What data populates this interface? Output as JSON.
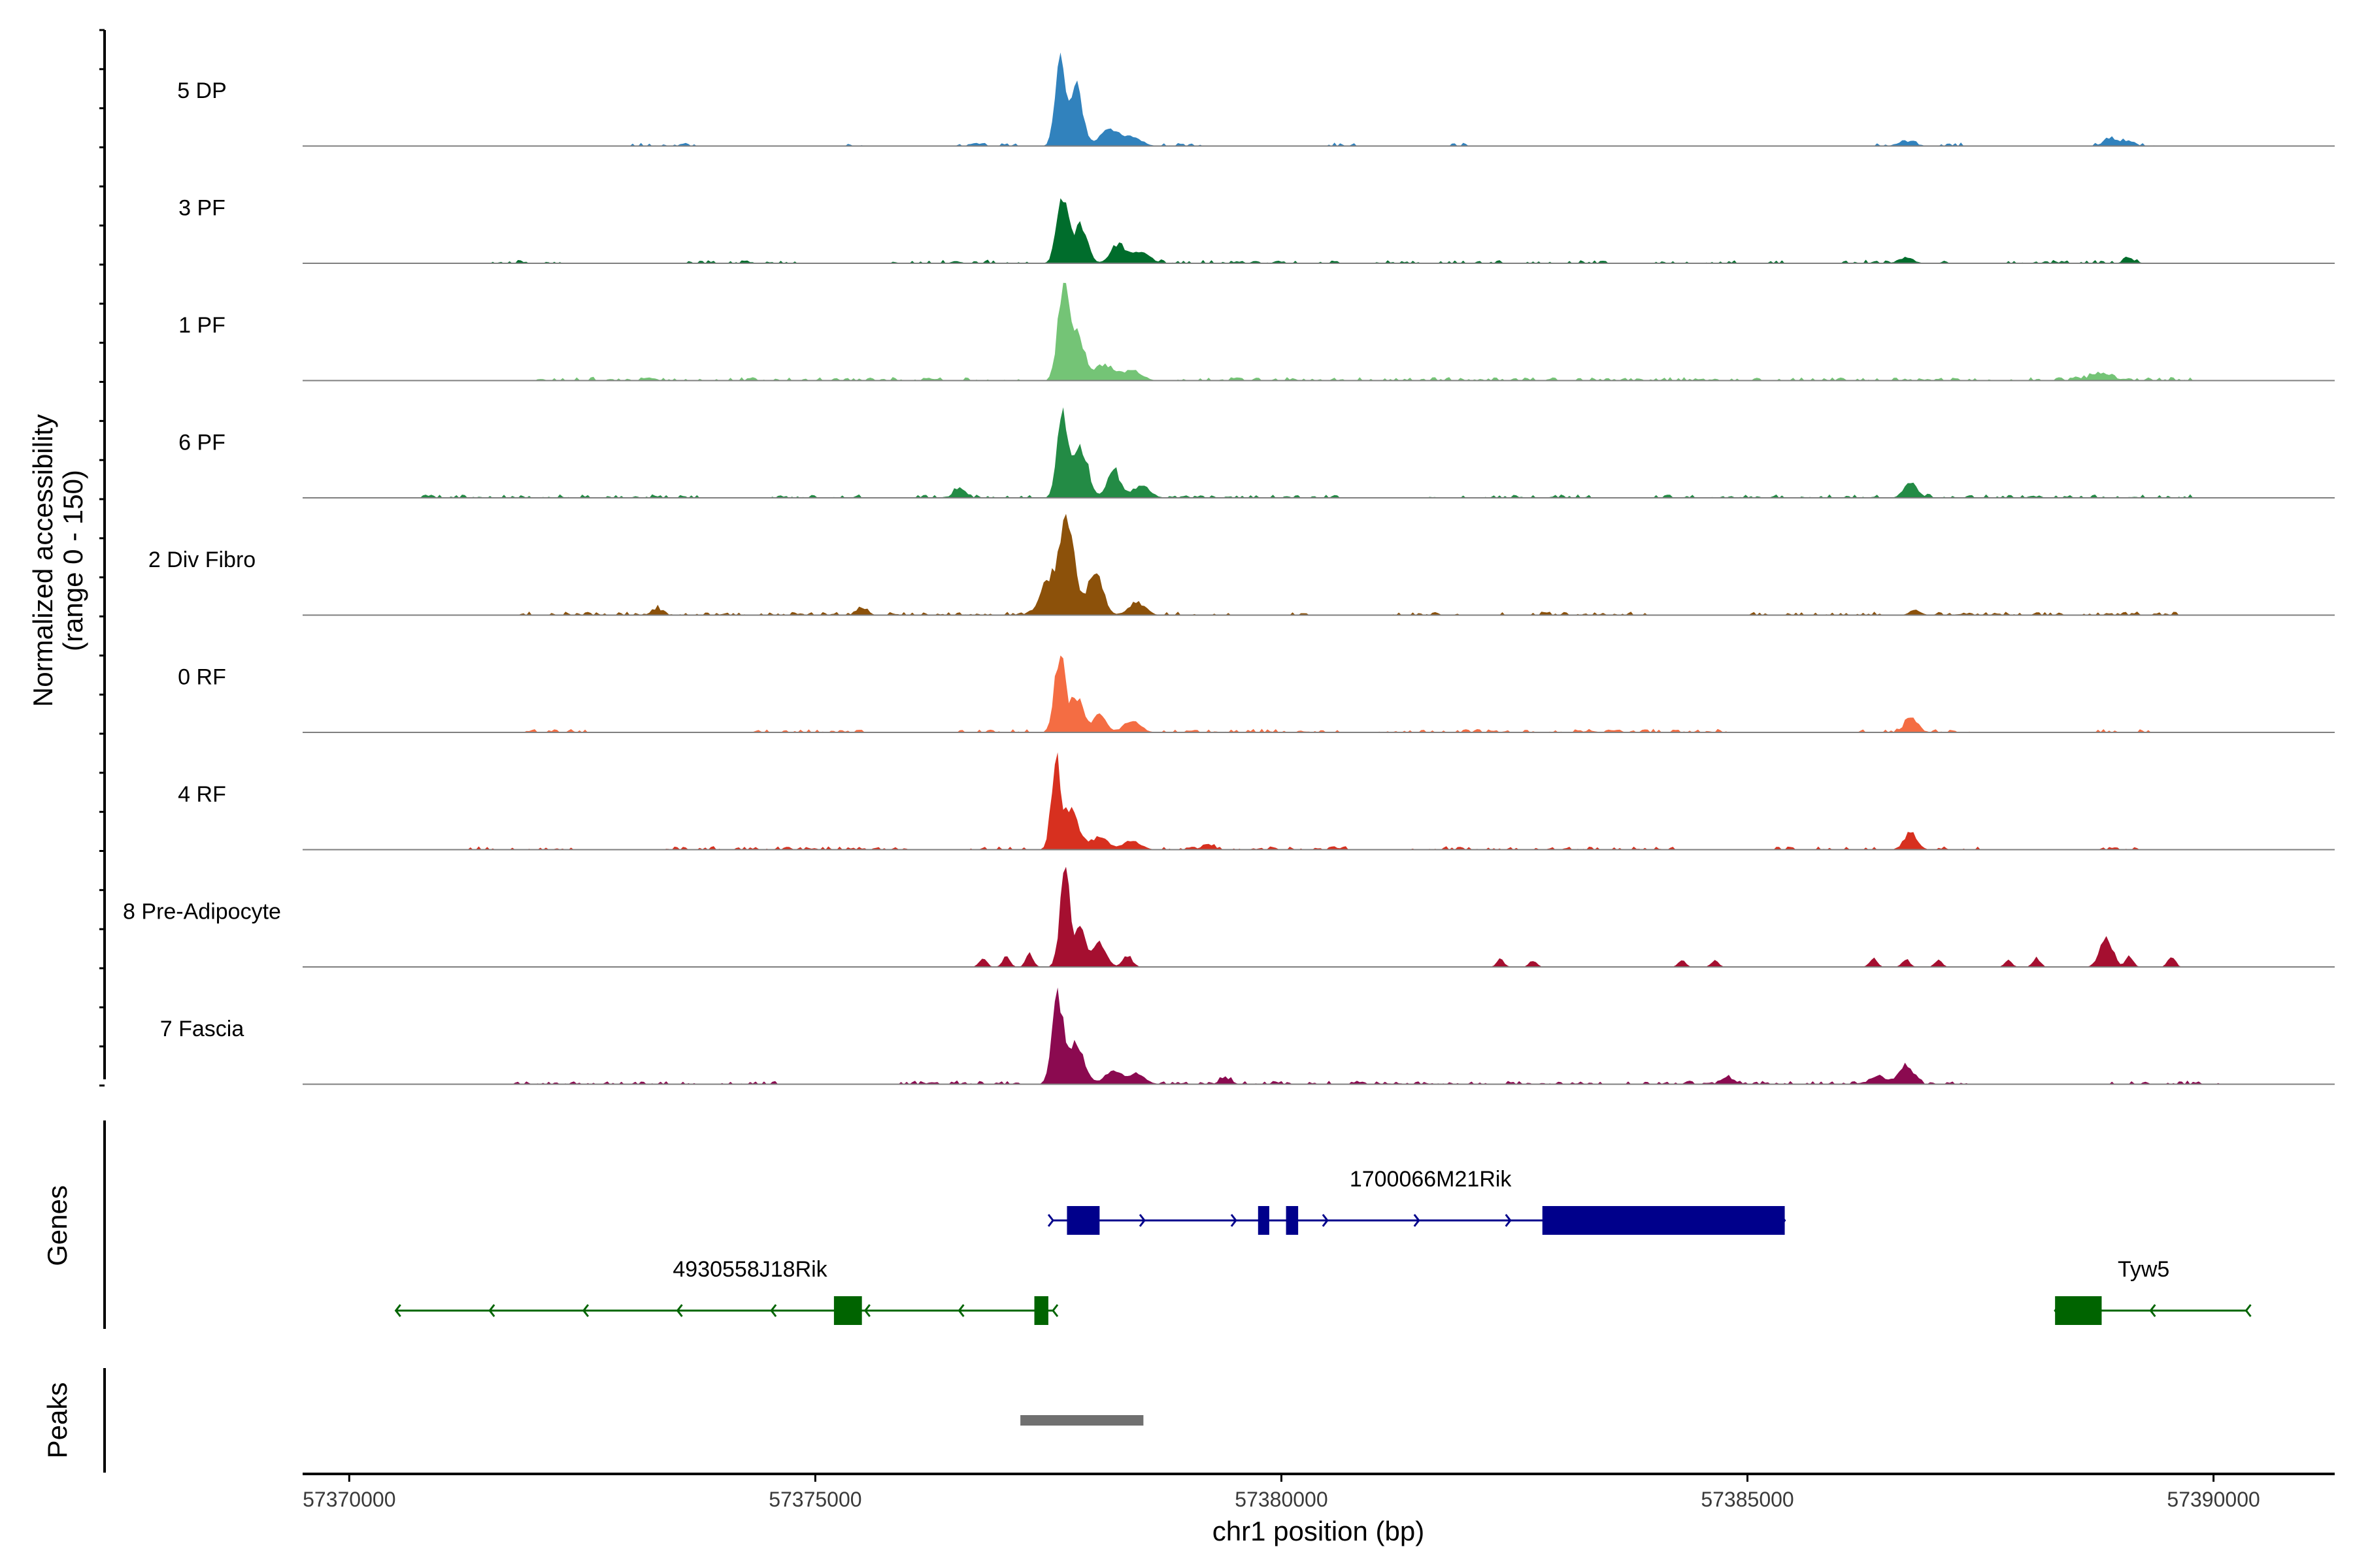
{
  "chart_data": {
    "type": "area",
    "title": "",
    "ylabel_lines": [
      "Normalized accessibility",
      "(range 0 - 150)"
    ],
    "xlabel": "chr1 position (bp)",
    "xlim": [
      57369500,
      57391300
    ],
    "xticks": [
      57370000,
      57375000,
      57380000,
      57385000,
      57390000
    ],
    "xtick_labels": [
      "57370000",
      "57375000",
      "57380000",
      "57385000",
      "57390000"
    ],
    "ylim": [
      0,
      150
    ],
    "tracks": [
      {
        "name": "5 DP",
        "color": "#3182bd",
        "peaks": [
          [
            57377620,
            140,
            50
          ],
          [
            57377800,
            90,
            70
          ],
          [
            57378150,
            28,
            90
          ],
          [
            57378400,
            14,
            100
          ],
          [
            57386700,
            7,
            90
          ],
          [
            57388900,
            10,
            80
          ],
          [
            57389100,
            8,
            60
          ]
        ],
        "noise": [
          [
            57373000,
            57373700
          ],
          [
            57375300,
            57375500
          ],
          [
            57376500,
            57377200
          ],
          [
            57378700,
            57379200
          ],
          [
            57380500,
            57380800
          ],
          [
            57381700,
            57382000
          ],
          [
            57386300,
            57387300
          ],
          [
            57388500,
            57389400
          ]
        ]
      },
      {
        "name": "3 PF",
        "color": "#006d2c",
        "peaks": [
          [
            57377650,
            105,
            60
          ],
          [
            57377850,
            60,
            70
          ],
          [
            57378250,
            30,
            80
          ],
          [
            57378500,
            18,
            90
          ],
          [
            57386700,
            8,
            80
          ],
          [
            57389100,
            6,
            60
          ]
        ],
        "noise": [
          [
            57371500,
            57372300
          ],
          [
            57373500,
            57374800
          ],
          [
            57375800,
            57377300
          ],
          [
            57378700,
            57380700
          ],
          [
            57381000,
            57383500
          ],
          [
            57384000,
            57385500
          ],
          [
            57386000,
            57387300
          ],
          [
            57387800,
            57389300
          ]
        ]
      },
      {
        "name": "1 PF",
        "color": "#74c476",
        "peaks": [
          [
            57377650,
            130,
            55
          ],
          [
            57377800,
            80,
            80
          ],
          [
            57378100,
            25,
            100
          ],
          [
            57378400,
            16,
            100
          ],
          [
            57388800,
            10,
            120
          ]
        ],
        "noise": [
          [
            57372000,
            57377200
          ],
          [
            57378700,
            57380500
          ],
          [
            57380500,
            57384000
          ],
          [
            57384000,
            57389800
          ]
        ]
      },
      {
        "name": "6 PF",
        "color": "#238b45",
        "peaks": [
          [
            57377650,
            140,
            55
          ],
          [
            57377850,
            80,
            75
          ],
          [
            57378200,
            45,
            70
          ],
          [
            57378500,
            20,
            90
          ],
          [
            57376550,
            16,
            60
          ],
          [
            57386750,
            26,
            70
          ]
        ],
        "noise": [
          [
            57370600,
            57373800
          ],
          [
            57374500,
            57375500
          ],
          [
            57376000,
            57377300
          ],
          [
            57378800,
            57380600
          ],
          [
            57381500,
            57383300
          ],
          [
            57384000,
            57386400
          ],
          [
            57386900,
            57389800
          ]
        ]
      },
      {
        "name": "2 Div Fibro",
        "color": "#8c510a",
        "peaks": [
          [
            57377700,
            145,
            75
          ],
          [
            57377500,
            55,
            90
          ],
          [
            57378000,
            70,
            80
          ],
          [
            57378450,
            20,
            90
          ],
          [
            57373300,
            10,
            60
          ],
          [
            57375500,
            10,
            60
          ],
          [
            57386800,
            8,
            60
          ]
        ],
        "noise": [
          [
            57371800,
            57377300
          ],
          [
            57378700,
            57379500
          ],
          [
            57380100,
            57380300
          ],
          [
            57381000,
            57381900
          ],
          [
            57382300,
            57384000
          ],
          [
            57385000,
            57386500
          ],
          [
            57387000,
            57389600
          ]
        ]
      },
      {
        "name": "0 RF",
        "color": "#f46d43",
        "peaks": [
          [
            57377620,
            120,
            55
          ],
          [
            57377800,
            55,
            70
          ],
          [
            57378050,
            30,
            70
          ],
          [
            57378400,
            18,
            90
          ],
          [
            57386750,
            20,
            70
          ]
        ],
        "noise": [
          [
            57371800,
            57372600
          ],
          [
            57374300,
            57375500
          ],
          [
            57376500,
            57377300
          ],
          [
            57378700,
            57380600
          ],
          [
            57381000,
            57384800
          ],
          [
            57386000,
            57387400
          ],
          [
            57388700,
            57389300
          ]
        ]
      },
      {
        "name": "4 RF",
        "color": "#d7301f",
        "peaks": [
          [
            57377580,
            135,
            50
          ],
          [
            57377750,
            60,
            80
          ],
          [
            57378050,
            20,
            90
          ],
          [
            57378400,
            14,
            90
          ],
          [
            57379200,
            8,
            60
          ],
          [
            57386750,
            26,
            70
          ]
        ],
        "noise": [
          [
            57371300,
            57372400
          ],
          [
            57373400,
            57376000
          ],
          [
            57376600,
            57377300
          ],
          [
            57378700,
            57380700
          ],
          [
            57381300,
            57384300
          ],
          [
            57385300,
            57386400
          ],
          [
            57387000,
            57387700
          ],
          [
            57388700,
            57389200
          ]
        ]
      },
      {
        "name": "8 Pre-Adipocyte",
        "color": "#a50f30",
        "peaks": [
          [
            57377680,
            140,
            55
          ],
          [
            57377850,
            55,
            60
          ],
          [
            57378050,
            35,
            70
          ],
          [
            57378350,
            18,
            50
          ],
          [
            57376800,
            14,
            40
          ],
          [
            57377050,
            16,
            40
          ],
          [
            57377300,
            20,
            40
          ],
          [
            57382350,
            12,
            40
          ],
          [
            57382700,
            10,
            40
          ],
          [
            57384300,
            10,
            40
          ],
          [
            57384650,
            10,
            40
          ],
          [
            57386350,
            14,
            40
          ],
          [
            57386700,
            12,
            40
          ],
          [
            57387050,
            10,
            40
          ],
          [
            57387800,
            10,
            40
          ],
          [
            57388100,
            14,
            40
          ],
          [
            57388850,
            45,
            70
          ],
          [
            57389100,
            16,
            40
          ],
          [
            57389550,
            16,
            40
          ]
        ],
        "noise": []
      },
      {
        "name": "7 Fascia",
        "color": "#8b0a50",
        "peaks": [
          [
            57377600,
            135,
            60
          ],
          [
            57377800,
            60,
            90
          ],
          [
            57378200,
            22,
            90
          ],
          [
            57378450,
            16,
            90
          ],
          [
            57379400,
            10,
            60
          ],
          [
            57384800,
            8,
            80
          ],
          [
            57386700,
            28,
            80
          ],
          [
            57386400,
            12,
            80
          ]
        ],
        "noise": [
          [
            57371700,
            57373700
          ],
          [
            57374000,
            57374600
          ],
          [
            57375900,
            57377200
          ],
          [
            57378700,
            57380600
          ],
          [
            57380700,
            57383500
          ],
          [
            57383700,
            57386000
          ],
          [
            57386000,
            57387400
          ],
          [
            57388800,
            57389300
          ],
          [
            57389500,
            57390100
          ]
        ]
      }
    ],
    "genes_label": "Genes",
    "genes": [
      {
        "name": "1700066M21Rik",
        "strand": "+",
        "color": "#00008b",
        "start": 57377550,
        "end": 57385400,
        "exons": [
          [
            57377700,
            57378050
          ],
          [
            57379750,
            57379870
          ],
          [
            57380050,
            57380180
          ],
          [
            57382800,
            57385400
          ]
        ],
        "label_pos": 57381600
      },
      {
        "name": "4930558J18Rik",
        "strand": "-",
        "color": "#006400",
        "start": 57370500,
        "end": 57377550,
        "exons": [
          [
            57375200,
            57375500
          ],
          [
            57377350,
            57377500
          ]
        ],
        "label_pos": 57374300
      },
      {
        "name": "Tyw5",
        "strand": "-",
        "color": "#006400",
        "start": 57388300,
        "end": 57390350,
        "exons": [
          [
            57388300,
            57388800
          ]
        ],
        "label_pos": 57389250
      }
    ],
    "peaks_label": "Peaks",
    "peak_regions": [
      [
        57377200,
        57378520
      ]
    ],
    "peak_region_color": "#707070"
  }
}
